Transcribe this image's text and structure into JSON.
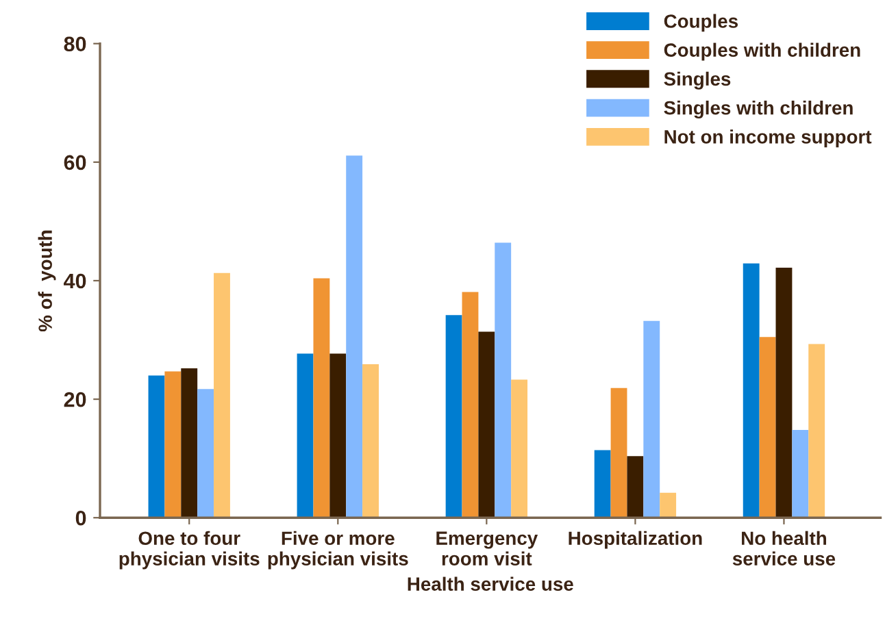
{
  "chart_data": {
    "type": "bar",
    "xlabel": "Health service use",
    "ylabel": "% of  youth",
    "categories": [
      "One to four\nphysician visits",
      "Five or more\nphysician visits",
      "Emergency\nroom visit",
      "Hospitalization",
      "No health\nservice use"
    ],
    "series": [
      {
        "name": "Couples",
        "color": "#007dd0",
        "values": [
          24.0,
          27.7,
          34.2,
          11.4,
          42.9
        ]
      },
      {
        "name": "Couples with children",
        "color": "#f09433",
        "values": [
          24.7,
          40.4,
          38.1,
          21.9,
          30.5
        ]
      },
      {
        "name": "Singles",
        "color": "#3a1e00",
        "values": [
          25.2,
          27.7,
          31.4,
          10.4,
          42.2
        ]
      },
      {
        "name": "Singles with children",
        "color": "#83b8fe",
        "values": [
          21.7,
          61.1,
          46.4,
          33.2,
          14.8
        ]
      },
      {
        "name": "Not on income support",
        "color": "#fdc56f",
        "values": [
          41.3,
          25.9,
          23.3,
          4.2,
          29.3
        ]
      }
    ],
    "ylim": [
      0,
      80
    ],
    "yticks": [
      0,
      20,
      40,
      60,
      80
    ],
    "grid": false,
    "legend": "top right"
  }
}
